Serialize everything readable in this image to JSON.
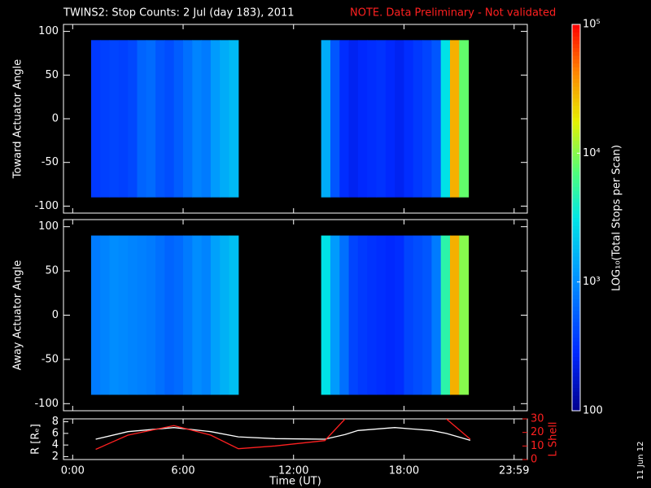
{
  "chart_data": {
    "type": "spectrogram",
    "title": "TWINS2: Stop Counts:  2 Jul (day 183), 2011",
    "note": "NOTE. Data Preliminary - Not validated",
    "date_stamp": "11 Jun 12",
    "xlabel": "Time (UT)",
    "xlim": [
      -0.5,
      24.7
    ],
    "xticks": [
      {
        "value": 0,
        "label": "0:00"
      },
      {
        "value": 6,
        "label": "6:00"
      },
      {
        "value": 12,
        "label": "12:00"
      },
      {
        "value": 18,
        "label": "18:00"
      },
      {
        "value": 23.983,
        "label": "23:59"
      }
    ],
    "ylim": [
      -108,
      108
    ],
    "yticks": [
      -100,
      -50,
      0,
      50,
      100
    ],
    "angle_range": [
      -90,
      90
    ],
    "bin_width": 0.5,
    "times": [
      1.25,
      1.75,
      2.25,
      2.75,
      3.25,
      3.75,
      4.25,
      4.75,
      5.25,
      5.75,
      6.25,
      6.75,
      7.25,
      7.75,
      8.25,
      8.75,
      13.75,
      14.25,
      14.75,
      15.25,
      15.75,
      16.25,
      16.75,
      17.25,
      17.75,
      18.25,
      18.75,
      19.25,
      19.75,
      20.25,
      20.75,
      21.25
    ],
    "panels": [
      {
        "ylabel": "Toward Actuator Angle",
        "values": [
          350,
          380,
          400,
          380,
          420,
          600,
          650,
          500,
          450,
          550,
          700,
          900,
          800,
          1200,
          1500,
          1800,
          1500,
          500,
          300,
          250,
          280,
          300,
          320,
          280,
          250,
          300,
          350,
          400,
          500,
          3000,
          30000,
          8000
        ]
      },
      {
        "ylabel": "Away Actuator Angle",
        "values": [
          800,
          900,
          1000,
          950,
          900,
          850,
          800,
          700,
          600,
          650,
          800,
          1000,
          900,
          1300,
          1600,
          1900,
          3000,
          1200,
          700,
          400,
          350,
          320,
          300,
          280,
          300,
          400,
          450,
          500,
          800,
          5000,
          30000,
          10000
        ]
      }
    ],
    "colorbar": {
      "label": "LOG₁₀(Total Stops per Scan)",
      "lim": [
        100,
        100000
      ],
      "log": true,
      "ticks": [
        {
          "value": 100000,
          "label": "10⁵"
        },
        {
          "value": 10000,
          "label": "10⁴"
        },
        {
          "value": 1000,
          "label": "10³"
        },
        100
      ]
    },
    "orbit": {
      "x": [
        1.25,
        3,
        5.5,
        7.5,
        9,
        11,
        13.7,
        14.8,
        15.5,
        17.5,
        19.5,
        20.3,
        21.6
      ],
      "ylabel": "R [Rₑ]",
      "ylim": [
        1.5,
        8.5
      ],
      "yticks": [
        2,
        4,
        6,
        8
      ],
      "y2label": "L Shell",
      "y2lim": [
        0,
        30
      ],
      "y2ticks": [
        0,
        10,
        20,
        30
      ],
      "series": [
        {
          "name": "R",
          "color": "#ffffff",
          "values": [
            5,
            6.3,
            7,
            6.3,
            5.4,
            5.1,
            5,
            5.8,
            6.5,
            7,
            6.5,
            6,
            4.8
          ]
        },
        {
          "name": "L",
          "color": "#ff2020",
          "axis": "y2",
          "values": [
            7.5,
            18,
            25,
            18,
            8,
            10,
            14,
            30,
            null,
            null,
            null,
            30,
            15
          ]
        }
      ]
    }
  }
}
